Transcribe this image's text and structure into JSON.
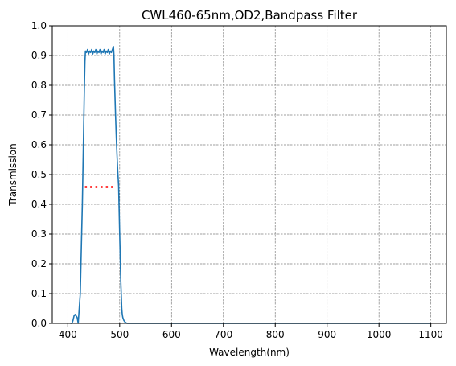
{
  "chart_data": {
    "type": "line",
    "title": "CWL460-65nm,OD2,Bandpass Filter",
    "xlabel": "Wavelength(nm)",
    "ylabel": "Transmission",
    "xlim": [
      370,
      1130
    ],
    "ylim": [
      0,
      1.0
    ],
    "xticks": [
      400,
      500,
      600,
      700,
      800,
      900,
      1000,
      1100
    ],
    "yticks": [
      0.0,
      0.1,
      0.2,
      0.3,
      0.4,
      0.5,
      0.6,
      0.7,
      0.8,
      0.9,
      1.0
    ],
    "xtick_labels": [
      "400",
      "500",
      "600",
      "700",
      "800",
      "900",
      "1000",
      "1100"
    ],
    "ytick_labels": [
      "0.0",
      "0.1",
      "0.2",
      "0.3",
      "0.4",
      "0.5",
      "0.6",
      "0.7",
      "0.8",
      "0.9",
      "1.0"
    ],
    "grid": true,
    "series": [
      {
        "color": "#1f77b4",
        "style": "solid",
        "x": [
          405,
          408,
          410,
          412,
          414,
          416,
          418,
          420,
          424,
          428,
          430,
          432,
          433,
          434,
          436,
          438,
          440,
          442,
          444,
          446,
          448,
          450,
          452,
          454,
          456,
          458,
          460,
          462,
          464,
          466,
          468,
          470,
          472,
          474,
          476,
          478,
          480,
          482,
          484,
          486,
          487,
          488,
          489,
          490,
          492,
          494,
          496,
          498,
          500,
          502,
          504,
          505,
          506,
          508,
          510,
          514,
          520,
          600,
          700,
          800,
          900,
          1000,
          1100
        ],
        "y": [
          0.0,
          0.0,
          0.01,
          0.025,
          0.03,
          0.025,
          0.02,
          0.0,
          0.1,
          0.4,
          0.6,
          0.8,
          0.88,
          0.915,
          0.91,
          0.92,
          0.905,
          0.915,
          0.91,
          0.92,
          0.905,
          0.915,
          0.91,
          0.92,
          0.905,
          0.915,
          0.91,
          0.92,
          0.905,
          0.915,
          0.91,
          0.92,
          0.905,
          0.915,
          0.91,
          0.92,
          0.905,
          0.915,
          0.91,
          0.92,
          0.925,
          0.93,
          0.9,
          0.82,
          0.7,
          0.6,
          0.52,
          0.46,
          0.3,
          0.15,
          0.05,
          0.03,
          0.02,
          0.01,
          0.005,
          0.0,
          0.0,
          0.0,
          0.0,
          0.0,
          0.0,
          0.0,
          0.0
        ]
      },
      {
        "color": "#ff0000",
        "style": "dotted",
        "x": [
          433,
          487
        ],
        "y": [
          0.458,
          0.458
        ]
      }
    ]
  }
}
